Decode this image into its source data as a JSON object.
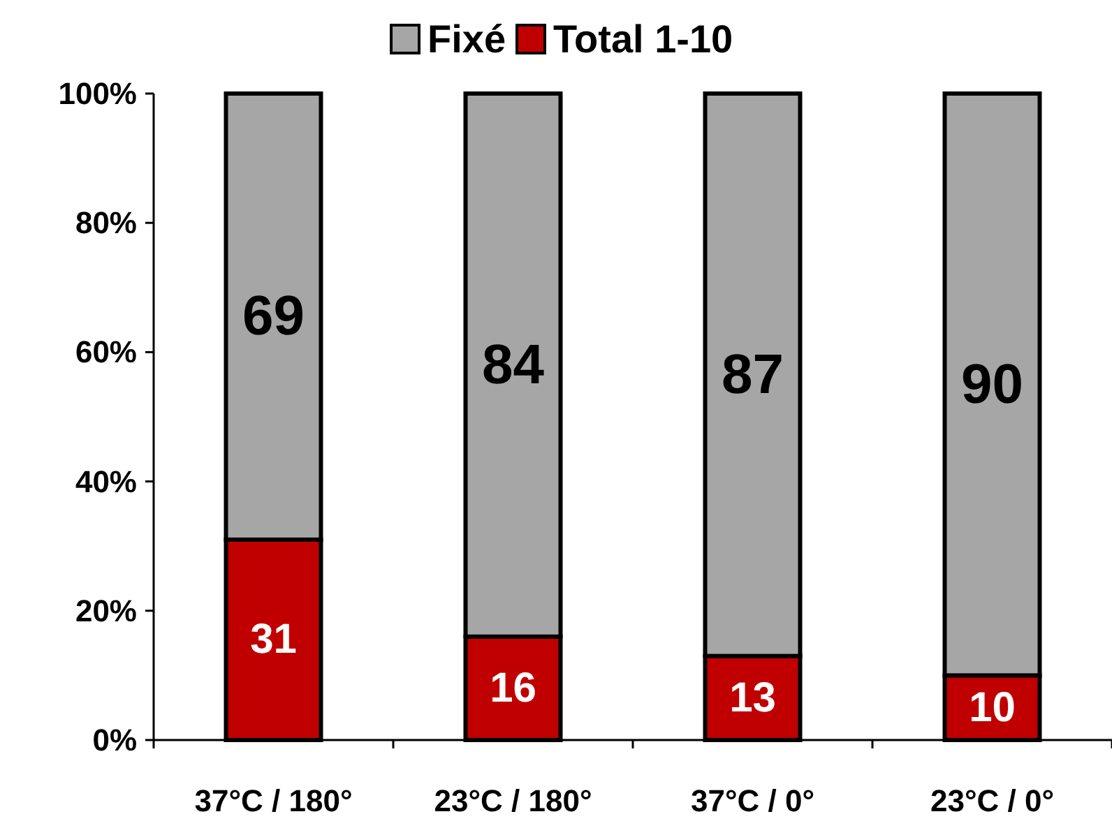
{
  "chart_data": {
    "type": "bar",
    "stacked": true,
    "categories": [
      "37°C / 180°",
      "23°C / 180°",
      "37°C / 0°",
      "23°C / 0°"
    ],
    "series": [
      {
        "name": "Total 1-10",
        "color": "#c00000",
        "values": [
          31,
          16,
          13,
          10
        ]
      },
      {
        "name": "Fixé",
        "color": "#a6a6a6",
        "values": [
          69,
          84,
          87,
          90
        ]
      }
    ],
    "ylim": [
      0,
      100
    ],
    "yticks": [
      {
        "value": 0,
        "label": "0%"
      },
      {
        "value": 20,
        "label": "20%"
      },
      {
        "value": 40,
        "label": "40%"
      },
      {
        "value": 60,
        "label": "60%"
      },
      {
        "value": 80,
        "label": "80%"
      },
      {
        "value": 100,
        "label": "100%"
      }
    ],
    "data_labels": true,
    "legend": "top",
    "grid": false
  }
}
